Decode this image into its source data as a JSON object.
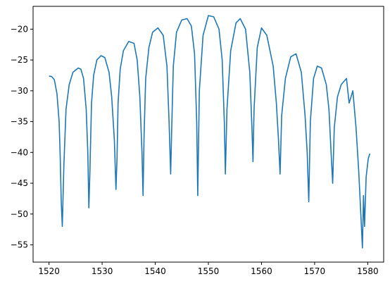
{
  "chart_data": {
    "type": "line",
    "title": "",
    "xlabel": "",
    "ylabel": "",
    "xlim": [
      1517,
      1583
    ],
    "ylim": [
      -57.8,
      -16.3
    ],
    "xticks": [
      1520,
      1530,
      1540,
      1550,
      1560,
      1570,
      1580
    ],
    "yticks": [
      -55,
      -50,
      -45,
      -40,
      -35,
      -30,
      -25,
      -20
    ],
    "grid": false,
    "legend": "none",
    "series": [
      {
        "color": "#1f77b4",
        "x": [
          1520.0,
          1520.5,
          1521.0,
          1521.5,
          1521.9,
          1522.1,
          1522.3,
          1522.5,
          1522.8,
          1523.2,
          1523.8,
          1524.5,
          1525.5,
          1526.0,
          1526.5,
          1527.0,
          1527.3,
          1527.5,
          1527.7,
          1528.0,
          1528.4,
          1529.0,
          1529.8,
          1530.5,
          1531.3,
          1531.8,
          1532.3,
          1532.6,
          1532.8,
          1533.0,
          1533.4,
          1534.0,
          1535.0,
          1536.0,
          1536.6,
          1537.1,
          1537.5,
          1537.7,
          1537.9,
          1538.2,
          1538.8,
          1539.5,
          1540.5,
          1541.5,
          1542.2,
          1542.6,
          1542.9,
          1543.1,
          1543.4,
          1544.0,
          1545.0,
          1546.0,
          1546.8,
          1547.4,
          1547.8,
          1548.0,
          1548.3,
          1549.0,
          1550.0,
          1551.0,
          1552.0,
          1552.6,
          1553.0,
          1553.2,
          1553.5,
          1554.2,
          1555.2,
          1556.0,
          1557.0,
          1557.8,
          1558.2,
          1558.4,
          1558.6,
          1559.2,
          1560.0,
          1561.0,
          1562.2,
          1562.8,
          1563.2,
          1563.5,
          1563.8,
          1564.5,
          1565.5,
          1566.5,
          1567.5,
          1568.2,
          1568.6,
          1568.9,
          1569.2,
          1569.8,
          1570.5,
          1571.3,
          1572.2,
          1572.7,
          1573.1,
          1573.4,
          1573.7,
          1574.3,
          1575.0,
          1576.0,
          1576.5,
          1577.2,
          1577.8,
          1578.3,
          1578.7,
          1579.0,
          1579.2,
          1579.4,
          1579.7,
          1580.1,
          1580.4
        ],
        "y": [
          -27.6,
          -27.7,
          -28.2,
          -30.5,
          -35.0,
          -40.5,
          -48.0,
          -52.0,
          -42.0,
          -33.0,
          -29.0,
          -27.0,
          -26.3,
          -26.5,
          -28.0,
          -33.0,
          -40.0,
          -49.0,
          -43.0,
          -32.0,
          -27.5,
          -25.0,
          -24.3,
          -24.6,
          -27.0,
          -31.0,
          -38.0,
          -46.0,
          -41.0,
          -32.0,
          -26.5,
          -23.5,
          -22.0,
          -22.3,
          -25.0,
          -31.0,
          -40.0,
          -47.0,
          -37.0,
          -28.0,
          -23.0,
          -20.5,
          -19.8,
          -21.0,
          -26.0,
          -35.0,
          -43.5,
          -36.0,
          -26.0,
          -20.5,
          -18.5,
          -18.3,
          -19.5,
          -24.0,
          -35.0,
          -47.0,
          -30.0,
          -21.0,
          -17.8,
          -18.0,
          -20.0,
          -25.0,
          -35.0,
          -43.5,
          -33.0,
          -23.5,
          -19.0,
          -18.3,
          -20.0,
          -27.0,
          -36.0,
          -41.5,
          -33.0,
          -23.0,
          -19.8,
          -21.0,
          -26.0,
          -32.0,
          -38.0,
          -43.5,
          -34.0,
          -28.0,
          -24.5,
          -24.0,
          -27.0,
          -34.0,
          -40.0,
          -48.0,
          -35.0,
          -28.0,
          -26.0,
          -26.3,
          -29.0,
          -33.0,
          -40.0,
          -45.0,
          -36.0,
          -31.0,
          -29.0,
          -28.0,
          -32.0,
          -30.0,
          -36.0,
          -43.0,
          -50.0,
          -55.5,
          -47.0,
          -52.0,
          -44.0,
          -41.0,
          -40.2
        ]
      }
    ]
  }
}
